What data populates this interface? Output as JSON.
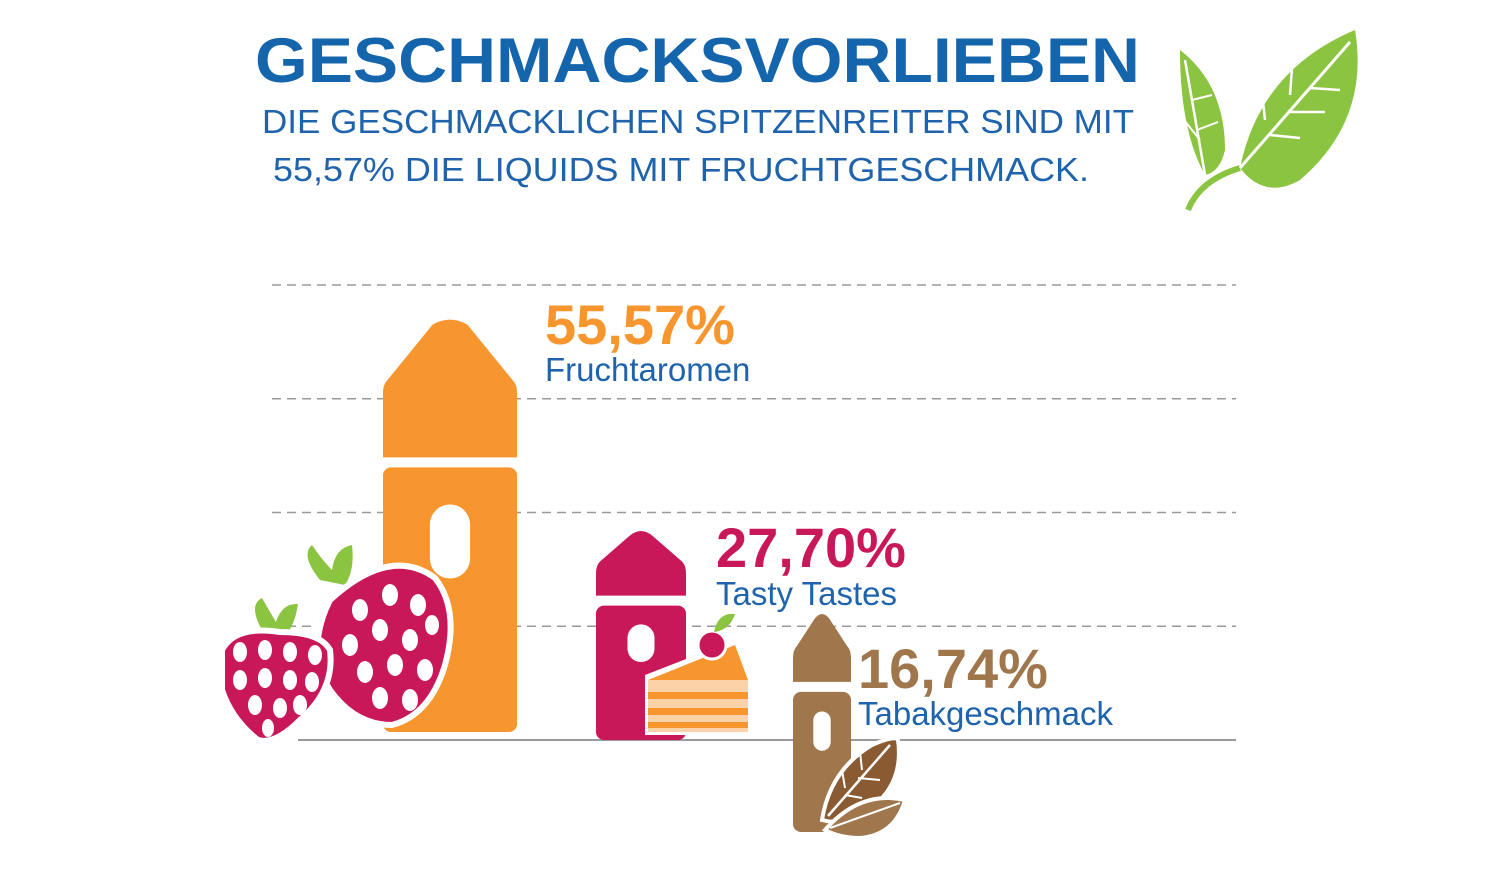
{
  "header": {
    "title": "GESCHMACKSVORLIEBEN",
    "subtitle_line1": "DIE GESCHMACKLICHEN SPITZENREITER SIND MIT",
    "subtitle_line2": "55,57% DIE LIQUIDS MIT FRUCHTGESCHMACK."
  },
  "icons": {
    "decoration": "green-leaves-icon",
    "fruit": "strawberry-icon",
    "dessert": "cake-slice-icon",
    "tobacco": "tobacco-leaf-icon"
  },
  "colors": {
    "title": "#1565ad",
    "fruit": "#f7952e",
    "tasty": "#c8185a",
    "tobacco": "#a0774c",
    "leaf_green": "#8ac440",
    "gridline": "#9a9a9a"
  },
  "chart_data": {
    "type": "bar",
    "title": "GESCHMACKSVORLIEBEN",
    "categories": [
      "Fruchtaromen",
      "Tasty Tastes",
      "Tabakgeschmack"
    ],
    "values": [
      55.57,
      27.7,
      16.74
    ],
    "value_labels": [
      "55,57%",
      "27,70%",
      "16,74%"
    ],
    "unit": "%",
    "ylim": [
      0,
      60
    ],
    "grid": true,
    "gridline_values": [
      15,
      30,
      45,
      60
    ],
    "bar_style": "liquid-bottle",
    "xlabel": "",
    "ylabel": ""
  }
}
